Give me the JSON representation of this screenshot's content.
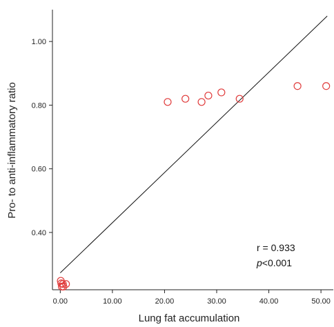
{
  "chart_data": {
    "type": "scatter",
    "xlabel": "Lung fat accumulation",
    "ylabel": "Pro- to anti-inflammatory ratio",
    "xlim": [
      -1.5,
      52.5
    ],
    "ylim": [
      0.22,
      1.1
    ],
    "x_ticks": [
      {
        "value": 0,
        "label": "0.00"
      },
      {
        "value": 10,
        "label": "10.00"
      },
      {
        "value": 20,
        "label": "20.00"
      },
      {
        "value": 30,
        "label": "30.00"
      },
      {
        "value": 40,
        "label": "40.00"
      },
      {
        "value": 50,
        "label": "50.00"
      }
    ],
    "y_ticks": [
      {
        "value": 0.4,
        "label": "0.40"
      },
      {
        "value": 0.6,
        "label": "0.60"
      },
      {
        "value": 0.8,
        "label": "0.80"
      },
      {
        "value": 1.0,
        "label": "1.00"
      }
    ],
    "points": [
      {
        "x": 0.1,
        "y": 0.248
      },
      {
        "x": 0.2,
        "y": 0.24
      },
      {
        "x": 0.5,
        "y": 0.238
      },
      {
        "x": 0.3,
        "y": 0.23
      },
      {
        "x": 0.6,
        "y": 0.23
      },
      {
        "x": 1.1,
        "y": 0.238
      },
      {
        "x": 20.6,
        "y": 0.81
      },
      {
        "x": 24.0,
        "y": 0.82
      },
      {
        "x": 27.1,
        "y": 0.81
      },
      {
        "x": 28.4,
        "y": 0.83
      },
      {
        "x": 30.9,
        "y": 0.84
      },
      {
        "x": 34.4,
        "y": 0.82
      },
      {
        "x": 45.5,
        "y": 0.86
      },
      {
        "x": 51.0,
        "y": 0.86
      }
    ],
    "fit_line": {
      "x": [
        0,
        51.2
      ],
      "y": [
        0.273,
        1.08
      ]
    },
    "grid": false,
    "marker_color": "#e03c3c",
    "line_color": "#111111",
    "annotation": {
      "r_text": "r = 0.933",
      "p_symbol": "p",
      "p_rest": "<0.001"
    }
  }
}
